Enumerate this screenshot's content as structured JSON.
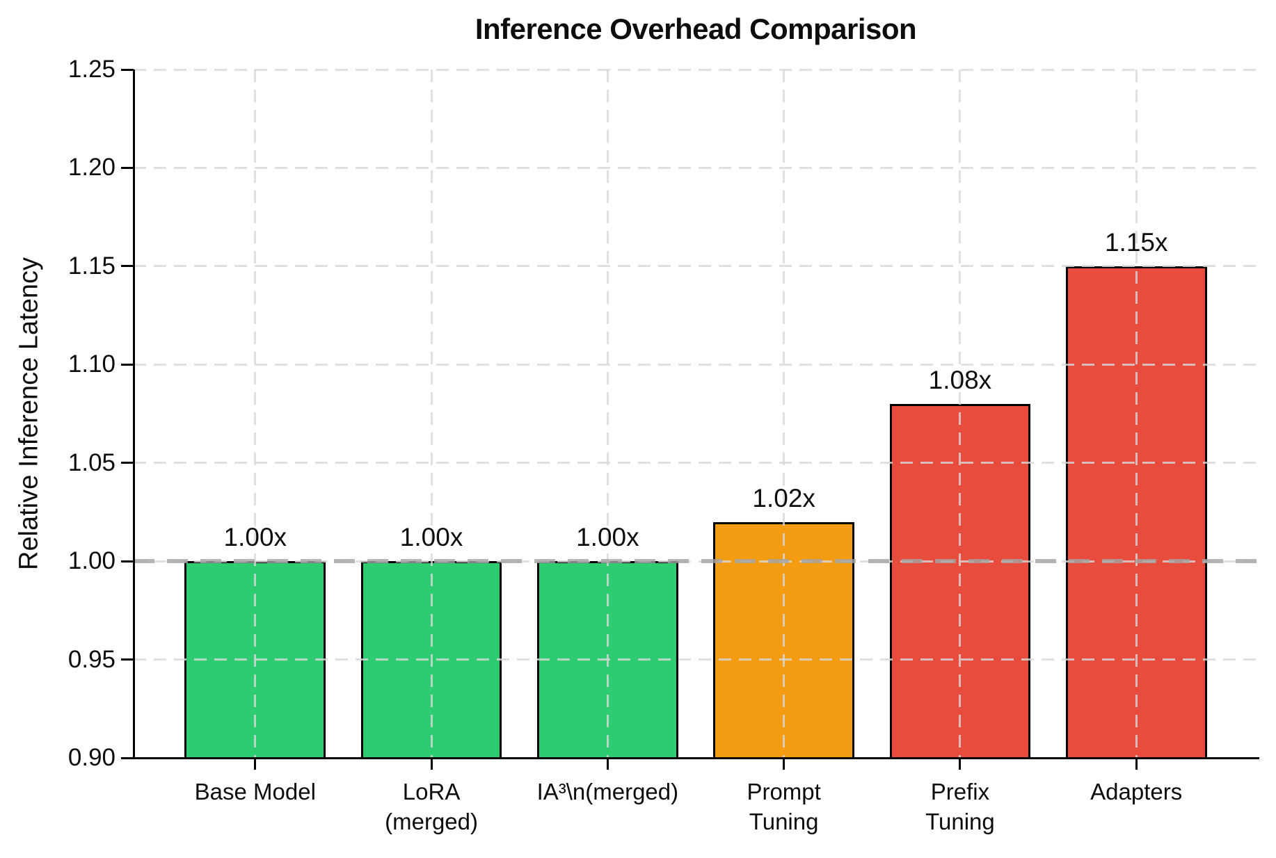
{
  "chart_data": {
    "type": "bar",
    "title": "Inference Overhead Comparison",
    "xlabel": "",
    "ylabel": "Relative Inference Latency",
    "categories": [
      "Base Model",
      "LoRA\n(merged)",
      "IA³\\n(merged)",
      "Prompt\nTuning",
      "Prefix\nTuning",
      "Adapters"
    ],
    "values": [
      1.0,
      1.0,
      1.0,
      1.02,
      1.08,
      1.15
    ],
    "bar_labels": [
      "1.00x",
      "1.00x",
      "1.00x",
      "1.02x",
      "1.08x",
      "1.15x"
    ],
    "bar_colors": [
      "#2ecc71",
      "#2ecc71",
      "#2ecc71",
      "#f39c12",
      "#e74c3c",
      "#e74c3c"
    ],
    "bar_edge_color": "#000000",
    "bar_width": 0.8,
    "x_margin": 0.69,
    "ylim": [
      0.9,
      1.25
    ],
    "yticks": [
      0.9,
      0.95,
      1.0,
      1.05,
      1.1,
      1.15,
      1.2,
      1.25
    ],
    "ytick_labels": [
      "0.90",
      "0.95",
      "1.00",
      "1.05",
      "1.10",
      "1.15",
      "1.20",
      "1.25"
    ],
    "grid": true,
    "grid_color": "rgba(216,216,216,0.8)",
    "reference_line": {
      "y": 1.0,
      "color": "rgba(164,164,164,0.8)"
    },
    "axis_color": "#000000",
    "text_color": "#0d0d0d",
    "legend_position": "none"
  }
}
